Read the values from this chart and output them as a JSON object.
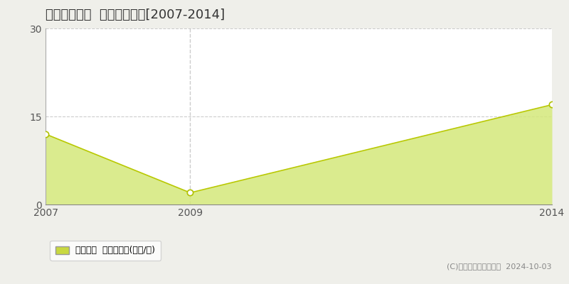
{
  "title": "東根市島大堀  住宅価格推移[2007-2014]",
  "years": [
    2007,
    2009,
    2014
  ],
  "values": [
    12.0,
    2.0,
    17.0
  ],
  "ylim": [
    0,
    30
  ],
  "yticks": [
    0,
    15,
    30
  ],
  "xticks": [
    2007,
    2009,
    2014
  ],
  "xlim": [
    2007,
    2014
  ],
  "line_color": "#b8c800",
  "fill_color": "#d4e87a",
  "fill_alpha": 0.85,
  "marker_facecolor": "white",
  "marker_edgecolor": "#b0c000",
  "marker_size": 6,
  "grid_color": "#cccccc",
  "grid_style": "--",
  "vline_x": 2009,
  "vline_color": "#cccccc",
  "vline_style": "--",
  "legend_label": "住宅価格  平均坪単価(万円/坪)",
  "legend_square_color": "#c8d840",
  "copyright_text": "(C)土地価格ドットコム  2024-10-03",
  "background_color": "#efefea",
  "plot_bg_color": "#ffffff",
  "title_fontsize": 13,
  "tick_fontsize": 10,
  "legend_fontsize": 9,
  "copyright_fontsize": 8
}
